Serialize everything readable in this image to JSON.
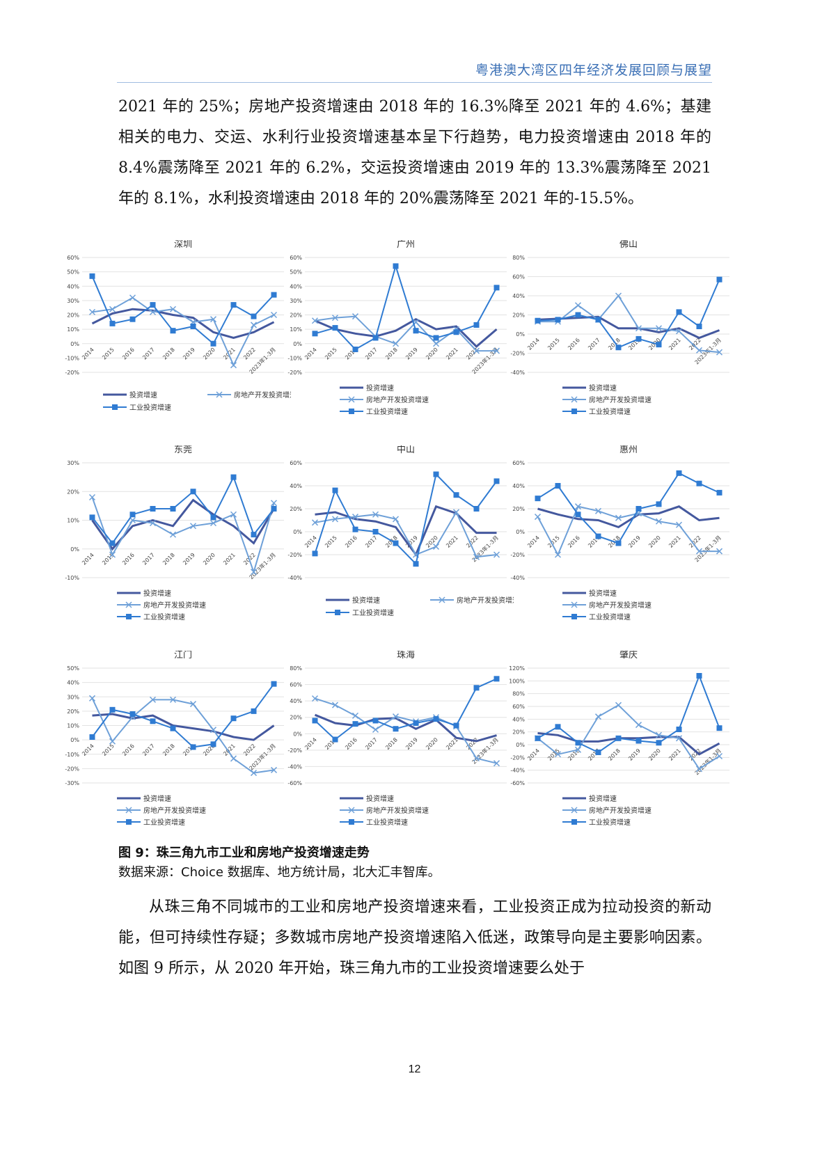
{
  "header": {
    "title": "粤港澳大湾区四年经济发展回顾与展望"
  },
  "paragraphs": {
    "p1": "2021 年的 25%；房地产投资增速由 2018 年的 16.3%降至 2021 年的 4.6%；基建相关的电力、交运、水利行业投资增速基本呈下行趋势，电力投资增速由 2018 年的 8.4%震荡降至 2021 年的 6.2%，交运投资增速由 2019 年的 13.3%震荡降至 2021 年的 8.1%，水利投资增速由 2018 年的 20%震荡降至 2021 年的-15.5%。",
    "p2": "从珠三角不同城市的工业和房地产投资增速来看，工业投资正成为拉动投资的新动能，但可持续性存疑；多数城市房地产投资增速陷入低迷，政策导向是主要影响因素。如图 9 所示，从 2020 年开始，珠三角九市的工业投资增速要么处于"
  },
  "figure": {
    "caption": "图 9：珠三角九市工业和房地产投资增速走势",
    "source": "数据来源：Choice 数据库、地方统计局，北大汇丰智库。"
  },
  "page_number": "12",
  "colors": {
    "invest": "#44589e",
    "realestate": "#6ea0d8",
    "industrial": "#2f7bd2"
  },
  "chart_data": [
    {
      "type": "line",
      "title": "深圳",
      "categories": [
        "2014",
        "2015",
        "2016",
        "2017",
        "2018",
        "2019",
        "2020",
        "2021",
        "2022",
        "2023年1-3月"
      ],
      "yticks": [
        -20,
        -10,
        0,
        10,
        20,
        30,
        40,
        50,
        60
      ],
      "ylim": [
        -20,
        60
      ],
      "series": [
        {
          "name": "投资增速",
          "values": [
            14,
            21,
            24,
            23,
            20,
            18,
            8,
            4,
            8,
            15
          ]
        },
        {
          "name": "房地产开发投资增速",
          "values": [
            22,
            24,
            32,
            22,
            24,
            15,
            17,
            -15,
            13,
            20
          ]
        },
        {
          "name": "工业投资增速",
          "values": [
            47,
            14,
            17,
            27,
            9,
            12,
            0,
            27,
            19,
            34
          ]
        }
      ]
    },
    {
      "type": "line",
      "title": "广州",
      "categories": [
        "2014",
        "2015",
        "2016",
        "2017",
        "2018",
        "2019",
        "2020",
        "2021",
        "2022",
        "2023年1-3月"
      ],
      "yticks": [
        -20,
        -10,
        0,
        10,
        20,
        30,
        40,
        50,
        60
      ],
      "ylim": [
        -20,
        60
      ],
      "series": [
        {
          "name": "投资增速",
          "values": [
            16,
            10,
            7,
            5,
            9,
            17,
            10,
            12,
            -2,
            10
          ]
        },
        {
          "name": "房地产开发投资增速",
          "values": [
            16,
            18,
            19,
            5,
            0,
            15,
            0,
            10,
            -5,
            -5
          ]
        },
        {
          "name": "工业投资增速",
          "values": [
            7,
            11,
            -4,
            4,
            54,
            9,
            4,
            8,
            13,
            39
          ]
        }
      ]
    },
    {
      "type": "line",
      "title": "佛山",
      "categories": [
        "2014",
        "2015",
        "2016",
        "2017",
        "2018",
        "2019",
        "2020",
        "2021",
        "2022",
        "2023年1-3月"
      ],
      "yticks": [
        -40,
        -20,
        0,
        20,
        40,
        60,
        80
      ],
      "ylim": [
        -40,
        80
      ],
      "series": [
        {
          "name": "投资增速",
          "values": [
            15,
            16,
            17,
            18,
            6,
            6,
            2,
            6,
            -4,
            4
          ]
        },
        {
          "name": "房地产开发投资增速",
          "values": [
            13,
            13,
            30,
            15,
            40,
            6,
            6,
            3,
            -17,
            -19
          ]
        },
        {
          "name": "工业投资增速",
          "values": [
            14,
            15,
            20,
            15,
            -14,
            -5,
            -11,
            23,
            8,
            57
          ]
        }
      ]
    },
    {
      "type": "line",
      "title": "东莞",
      "categories": [
        "2014",
        "2015",
        "2016",
        "2017",
        "2018",
        "2019",
        "2020",
        "2021",
        "2022",
        "2023年1-3月"
      ],
      "yticks": [
        -10,
        0,
        10,
        20,
        30
      ],
      "ylim": [
        -10,
        30
      ],
      "series": [
        {
          "name": "投资增速",
          "values": [
            10,
            0,
            8,
            10,
            8,
            17,
            12,
            8,
            2,
            14
          ]
        },
        {
          "name": "房地产开发投资增速",
          "values": [
            18,
            -2,
            10,
            9,
            5,
            8,
            9,
            12,
            -8,
            16
          ]
        },
        {
          "name": "工业投资增速",
          "values": [
            11,
            2,
            12,
            14,
            14,
            20,
            11,
            25,
            5,
            14
          ]
        }
      ]
    },
    {
      "type": "line",
      "title": "中山",
      "categories": [
        "2014",
        "2015",
        "2016",
        "2017",
        "2018",
        "2019",
        "2020",
        "2021",
        "2022",
        "2023年1-3月"
      ],
      "yticks": [
        -40,
        -20,
        0,
        20,
        40,
        60
      ],
      "ylim": [
        -40,
        60
      ],
      "series": [
        {
          "name": "投资增速",
          "values": [
            15,
            17,
            11,
            9,
            4,
            -20,
            22,
            16,
            -1,
            -1
          ]
        },
        {
          "name": "房地产开发投资增速",
          "values": [
            8,
            11,
            13,
            15,
            11,
            -20,
            -13,
            17,
            -22,
            -20
          ]
        },
        {
          "name": "工业投资增速",
          "values": [
            -19,
            36,
            2,
            0,
            -10,
            -28,
            50,
            32,
            20,
            44
          ]
        }
      ]
    },
    {
      "type": "line",
      "title": "惠州",
      "categories": [
        "2014",
        "2015",
        "2016",
        "2017",
        "2018",
        "2019",
        "2020",
        "2021",
        "2022",
        "2023年1-3月"
      ],
      "yticks": [
        -40,
        -20,
        0,
        20,
        40,
        60
      ],
      "ylim": [
        -40,
        60
      ],
      "series": [
        {
          "name": "投资增速",
          "values": [
            20,
            15,
            11,
            10,
            4,
            15,
            16,
            22,
            10,
            12
          ]
        },
        {
          "name": "房地产开发投资增速",
          "values": [
            13,
            -20,
            22,
            18,
            12,
            16,
            9,
            6,
            -17,
            -17
          ]
        },
        {
          "name": "工业投资增速",
          "values": [
            29,
            40,
            15,
            -4,
            -10,
            20,
            24,
            51,
            42,
            34
          ]
        }
      ]
    },
    {
      "type": "line",
      "title": "江门",
      "categories": [
        "2014",
        "2015",
        "2016",
        "2017",
        "2018",
        "2019",
        "2020",
        "2021",
        "2022",
        "2023年1-3月"
      ],
      "yticks": [
        -30,
        -20,
        -10,
        0,
        10,
        20,
        30,
        40,
        50
      ],
      "ylim": [
        -30,
        50
      ],
      "series": [
        {
          "name": "投资增速",
          "values": [
            17,
            18,
            15,
            17,
            10,
            8,
            6,
            2,
            0,
            10
          ]
        },
        {
          "name": "房地产开发投资增速",
          "values": [
            29,
            -1,
            16,
            28,
            28,
            25,
            7,
            -13,
            -23,
            -21
          ]
        },
        {
          "name": "工业投资增速",
          "values": [
            2,
            21,
            18,
            13,
            8,
            -5,
            -3,
            15,
            20,
            39
          ]
        }
      ]
    },
    {
      "type": "line",
      "title": "珠海",
      "categories": [
        "2014",
        "2015",
        "2016",
        "2017",
        "2018",
        "2019",
        "2020",
        "2021",
        "2022",
        "2023年1-3月"
      ],
      "yticks": [
        -60,
        -40,
        -20,
        0,
        20,
        40,
        60,
        80
      ],
      "ylim": [
        -60,
        80
      ],
      "series": [
        {
          "name": "投资增速",
          "values": [
            23,
            13,
            10,
            18,
            19,
            6,
            17,
            -5,
            -9,
            -2
          ]
        },
        {
          "name": "房地产开发投资增速",
          "values": [
            43,
            35,
            22,
            5,
            21,
            15,
            20,
            9,
            -30,
            -36
          ]
        },
        {
          "name": "工业投资增速",
          "values": [
            16,
            -7,
            12,
            16,
            6,
            13,
            18,
            10,
            56,
            67
          ]
        }
      ]
    },
    {
      "type": "line",
      "title": "肇庆",
      "categories": [
        "2014",
        "2015",
        "2016",
        "2017",
        "2018",
        "2019",
        "2020",
        "2021",
        "2022",
        "2023年1-3月"
      ],
      "yticks": [
        -60,
        -40,
        -20,
        0,
        20,
        40,
        60,
        80,
        100,
        120
      ],
      "ylim": [
        -60,
        120
      ],
      "series": [
        {
          "name": "投资增速",
          "values": [
            18,
            15,
            5,
            5,
            10,
            10,
            12,
            12,
            -15,
            2
          ]
        },
        {
          "name": "房地产开发投资增速",
          "values": [
            10,
            -15,
            -8,
            44,
            62,
            31,
            15,
            10,
            -38,
            -18
          ]
        },
        {
          "name": "工业投资增速",
          "values": [
            10,
            28,
            3,
            -12,
            10,
            6,
            3,
            24,
            108,
            26
          ]
        }
      ]
    }
  ]
}
